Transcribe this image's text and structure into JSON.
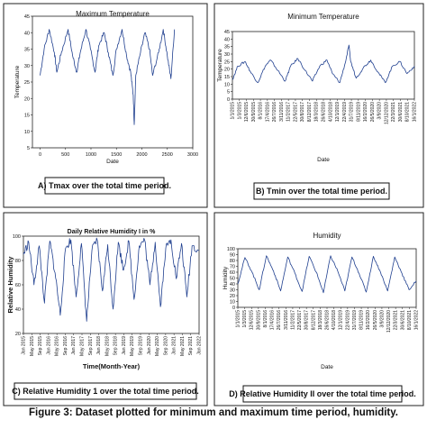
{
  "figure_caption": "Figure 3: Dataset plotted for minimum and maximum time period, humidity.",
  "colors": {
    "line": "#1f3f8f",
    "frame": "#222222"
  },
  "chart_data": [
    {
      "type": "line",
      "title": "Maximum Temperature",
      "xlabel": "Date",
      "ylabel": "Temperature",
      "xlim": [
        -150,
        3000
      ],
      "ylim": [
        5,
        45
      ],
      "x_ticks": [
        0,
        500,
        1000,
        1500,
        2000,
        2500,
        3000
      ],
      "y_ticks": [
        5,
        10,
        15,
        20,
        25,
        30,
        35,
        40,
        45
      ],
      "series": [
        {
          "x": [
            0,
            80,
            180,
            280,
            330,
            420,
            550,
            640,
            720,
            790,
            900,
            990,
            1080,
            1150,
            1260,
            1340,
            1430,
            1500,
            1610,
            1700,
            1780,
            1830,
            1850,
            1880,
            1960,
            2060,
            2150,
            2210,
            2330,
            2420,
            2500,
            2570,
            2640
          ],
          "y": [
            27,
            35,
            41,
            34,
            28,
            34,
            41,
            33,
            28,
            34,
            41,
            35,
            28,
            36,
            40,
            34,
            27,
            35,
            41,
            33,
            28,
            21,
            12,
            27,
            33,
            40,
            35,
            27,
            34,
            41,
            33,
            26,
            41
          ]
        }
      ],
      "caption": "A) Tmax over the total time period."
    },
    {
      "type": "line",
      "title": "Minimum Temperature",
      "xlabel": "Date",
      "ylabel": "Temperature",
      "ylim": [
        0,
        45
      ],
      "y_ticks": [
        0,
        5,
        10,
        15,
        20,
        25,
        30,
        35,
        40,
        45
      ],
      "x_tick_labels": [
        "1/1/2015",
        "1/3/2015",
        "12/6/2015",
        "30/9/2015",
        "8/1/2016",
        "17/4/2016",
        "26/7/2016",
        "3/11/2016",
        "11/2/2017",
        "22/5/2017",
        "30/8/2017",
        "8/12/2017",
        "18/3/2018",
        "26/6/2018",
        "4/10/2018",
        "12/1/2019",
        "22/4/2019",
        "31/7/2019",
        "8/11/2019",
        "16/2/2020",
        "26/5/2020",
        "3/9/2020",
        "12/12/2020",
        "22/3/2021",
        "30/6/2021",
        "8/10/2021",
        "16/1/2022"
      ],
      "series": [
        {
          "x": [
            0,
            0.03,
            0.07,
            0.1,
            0.14,
            0.18,
            0.21,
            0.25,
            0.29,
            0.32,
            0.36,
            0.4,
            0.44,
            0.48,
            0.52,
            0.55,
            0.59,
            0.62,
            0.64,
            0.65,
            0.68,
            0.72,
            0.76,
            0.8,
            0.84,
            0.88,
            0.92,
            0.96,
            1.0
          ],
          "y": [
            13,
            22,
            25,
            18,
            11,
            22,
            26,
            19,
            12,
            22,
            27,
            19,
            12,
            22,
            26,
            17,
            11,
            24,
            36,
            25,
            14,
            21,
            26,
            18,
            11,
            22,
            25,
            17,
            22
          ]
        }
      ],
      "caption": "B) Tmin over the total time period."
    },
    {
      "type": "line",
      "title": "Daily Relative Humidity I in %",
      "xlabel": "Time(Month-Year)",
      "ylabel": "Relative Humidity",
      "ylim": [
        20,
        100
      ],
      "y_ticks": [
        20,
        40,
        60,
        80,
        100
      ],
      "x_tick_labels": [
        "Jan 2015",
        "May 2015",
        "Sep 2015",
        "Jan 2016",
        "May 2016",
        "Sep 2016",
        "Jan 2017",
        "May 2017",
        "Sep 2017",
        "Jan 2018",
        "May 2018",
        "Sep 2018",
        "Jan 2019",
        "May 2019",
        "Sep 2019",
        "Jan 2020",
        "May 2020",
        "Sep 2020",
        "Jan 2021",
        "May 2021",
        "Sep 2021",
        "Jan 2022"
      ],
      "series": [
        {
          "x": [
            0,
            0.03,
            0.06,
            0.09,
            0.12,
            0.15,
            0.18,
            0.21,
            0.24,
            0.27,
            0.3,
            0.33,
            0.36,
            0.39,
            0.42,
            0.45,
            0.48,
            0.51,
            0.54,
            0.57,
            0.6,
            0.63,
            0.66,
            0.69,
            0.72,
            0.75,
            0.78,
            0.81,
            0.84,
            0.87,
            0.9,
            0.93,
            0.96,
            1.0
          ],
          "y": [
            85,
            95,
            60,
            92,
            45,
            96,
            70,
            35,
            90,
            97,
            50,
            94,
            30,
            88,
            97,
            55,
            93,
            40,
            95,
            72,
            96,
            48,
            92,
            97,
            60,
            95,
            42,
            90,
            97,
            65,
            94,
            50,
            92,
            88
          ]
        }
      ],
      "caption": "C) Relative Humidity 1 over the total time period."
    },
    {
      "type": "line",
      "title": "Humidity",
      "xlabel": "Date",
      "ylabel": "Humidity",
      "ylim": [
        0,
        100
      ],
      "y_ticks": [
        0,
        10,
        20,
        30,
        40,
        50,
        60,
        70,
        80,
        90,
        100
      ],
      "x_tick_labels": [
        "1/1/2015",
        "1/3/2015",
        "12/6/2015",
        "30/9/2015",
        "8/1/2016",
        "17/4/2016",
        "26/7/2016",
        "3/11/2016",
        "11/2/2017",
        "22/5/2017",
        "30/8/2017",
        "8/12/2017",
        "18/3/2018",
        "26/6/2018",
        "4/10/2018",
        "12/1/2019",
        "22/4/2019",
        "31/7/2019",
        "8/11/2019",
        "16/2/2020",
        "26/5/2020",
        "3/9/2020",
        "12/12/2020",
        "22/3/2021",
        "30/6/2021",
        "8/10/2021",
        "16/1/2022"
      ],
      "series": [
        {
          "x": [
            0,
            0.04,
            0.08,
            0.12,
            0.16,
            0.2,
            0.24,
            0.28,
            0.32,
            0.36,
            0.4,
            0.44,
            0.48,
            0.52,
            0.56,
            0.6,
            0.64,
            0.68,
            0.72,
            0.76,
            0.8,
            0.84,
            0.88,
            0.92,
            0.96,
            1.0
          ],
          "y": [
            40,
            85,
            60,
            30,
            88,
            62,
            28,
            86,
            58,
            27,
            87,
            60,
            25,
            88,
            62,
            28,
            86,
            58,
            26,
            87,
            60,
            28,
            86,
            58,
            30,
            45
          ]
        }
      ],
      "caption": "D) Relative Humidity II over the total time period."
    }
  ]
}
